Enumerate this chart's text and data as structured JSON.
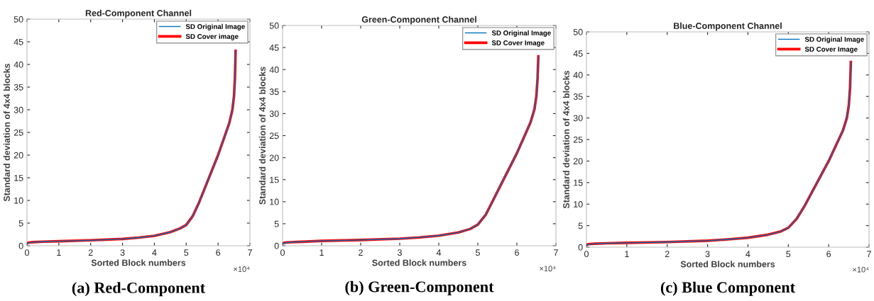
{
  "chart_data": [
    {
      "type": "line",
      "title": "Red-Component Channel",
      "xlabel": "Sorted Block numbers",
      "ylabel": "Standard deviation of 4x4 blocks",
      "annotations": [
        "×10⁴",
        "(a) Red-Component"
      ],
      "xlim": [
        0,
        7
      ],
      "xticks": [
        0,
        1,
        2,
        3,
        4,
        5,
        6,
        7
      ],
      "ylim": [
        0,
        50
      ],
      "yticks": [
        0,
        5,
        10,
        15,
        20,
        25,
        30,
        35,
        40,
        45,
        50
      ],
      "grid": false,
      "legend": "top right",
      "marker": "none",
      "line_style": "solid",
      "x": [
        0,
        0.05,
        0.2,
        0.5,
        1.0,
        2.0,
        3.0,
        3.5,
        4.0,
        4.5,
        4.8,
        5.0,
        5.2,
        5.4,
        5.6,
        5.8,
        6.0,
        6.2,
        6.35,
        6.45,
        6.5,
        6.53,
        6.55
      ],
      "series": [
        {
          "name": "SD Original Image",
          "color": "#0072bd",
          "values": [
            0.4,
            0.6,
            0.8,
            0.9,
            1.0,
            1.2,
            1.5,
            1.8,
            2.2,
            3.0,
            3.8,
            4.6,
            6.5,
            9.5,
            13,
            16.5,
            20,
            24,
            27,
            30,
            33,
            37,
            43
          ]
        },
        {
          "name": "SD Cover image",
          "color": "#ff0000",
          "values": [
            0.5,
            0.7,
            0.8,
            0.9,
            1.0,
            1.2,
            1.5,
            1.8,
            2.2,
            3.0,
            3.8,
            4.6,
            6.5,
            9.5,
            13,
            16.5,
            20,
            24,
            27,
            30,
            33,
            37,
            43
          ]
        }
      ]
    },
    {
      "type": "line",
      "title": "Green-Component Channel",
      "xlabel": "Sorted Block numbers",
      "ylabel": "Standard deviation of 4x4 blocks",
      "annotations": [
        "×10⁴",
        "(b) Green-Component"
      ],
      "xlim": [
        0,
        7
      ],
      "xticks": [
        0,
        1,
        2,
        3,
        4,
        5,
        6,
        7
      ],
      "ylim": [
        0,
        50
      ],
      "yticks": [
        0,
        5,
        10,
        15,
        20,
        25,
        30,
        35,
        40,
        45,
        50
      ],
      "grid": false,
      "legend": "top right",
      "marker": "none",
      "line_style": "solid",
      "x": [
        0,
        0.05,
        0.2,
        0.5,
        1.0,
        2.0,
        3.0,
        3.5,
        4.0,
        4.5,
        4.8,
        5.0,
        5.2,
        5.4,
        5.6,
        5.8,
        6.0,
        6.2,
        6.35,
        6.45,
        6.5,
        6.53,
        6.55
      ],
      "series": [
        {
          "name": "SD Original Image",
          "color": "#0072bd",
          "values": [
            0.4,
            0.6,
            0.8,
            0.9,
            1.1,
            1.3,
            1.6,
            1.9,
            2.3,
            3.0,
            3.8,
            4.8,
            7.0,
            10.5,
            14,
            17.5,
            21,
            25,
            28,
            31,
            34,
            38,
            43
          ]
        },
        {
          "name": "SD Cover Image",
          "color": "#ff0000",
          "values": [
            0.5,
            0.7,
            0.8,
            0.9,
            1.1,
            1.3,
            1.6,
            1.9,
            2.3,
            3.0,
            3.8,
            4.8,
            7.0,
            10.5,
            14,
            17.5,
            21,
            25,
            28,
            31,
            34,
            38,
            43
          ]
        }
      ]
    },
    {
      "type": "line",
      "title": "Blue-Component Channel",
      "xlabel": "Sorted Block numbers",
      "ylabel": "Standard deviation of 4x4 blocks",
      "annotations": [
        "×10⁴",
        "(c) Blue Component"
      ],
      "xlim": [
        0,
        7
      ],
      "xticks": [
        0,
        1,
        2,
        3,
        4,
        5,
        6,
        7
      ],
      "ylim": [
        0,
        50
      ],
      "yticks": [
        0,
        5,
        10,
        15,
        20,
        25,
        30,
        35,
        40,
        45,
        50
      ],
      "grid": false,
      "legend": "top right",
      "marker": "none",
      "line_style": "solid",
      "x": [
        0,
        0.05,
        0.2,
        0.5,
        1.0,
        2.0,
        3.0,
        3.5,
        4.0,
        4.5,
        4.8,
        5.0,
        5.2,
        5.4,
        5.6,
        5.8,
        6.0,
        6.2,
        6.35,
        6.45,
        6.5,
        6.53,
        6.55
      ],
      "series": [
        {
          "name": "SD Original Image",
          "color": "#0072bd",
          "values": [
            0.4,
            0.6,
            0.8,
            0.9,
            1.0,
            1.2,
            1.5,
            1.8,
            2.2,
            2.9,
            3.6,
            4.5,
            6.5,
            9.5,
            13,
            16.5,
            20,
            24,
            27,
            30,
            33,
            37,
            43
          ]
        },
        {
          "name": "SD Cover Image",
          "color": "#ff0000",
          "values": [
            0.5,
            0.7,
            0.8,
            0.9,
            1.0,
            1.2,
            1.5,
            1.8,
            2.2,
            2.9,
            3.6,
            4.5,
            6.5,
            9.5,
            13,
            16.5,
            20,
            24,
            27,
            30,
            33,
            37,
            43
          ]
        }
      ]
    }
  ]
}
